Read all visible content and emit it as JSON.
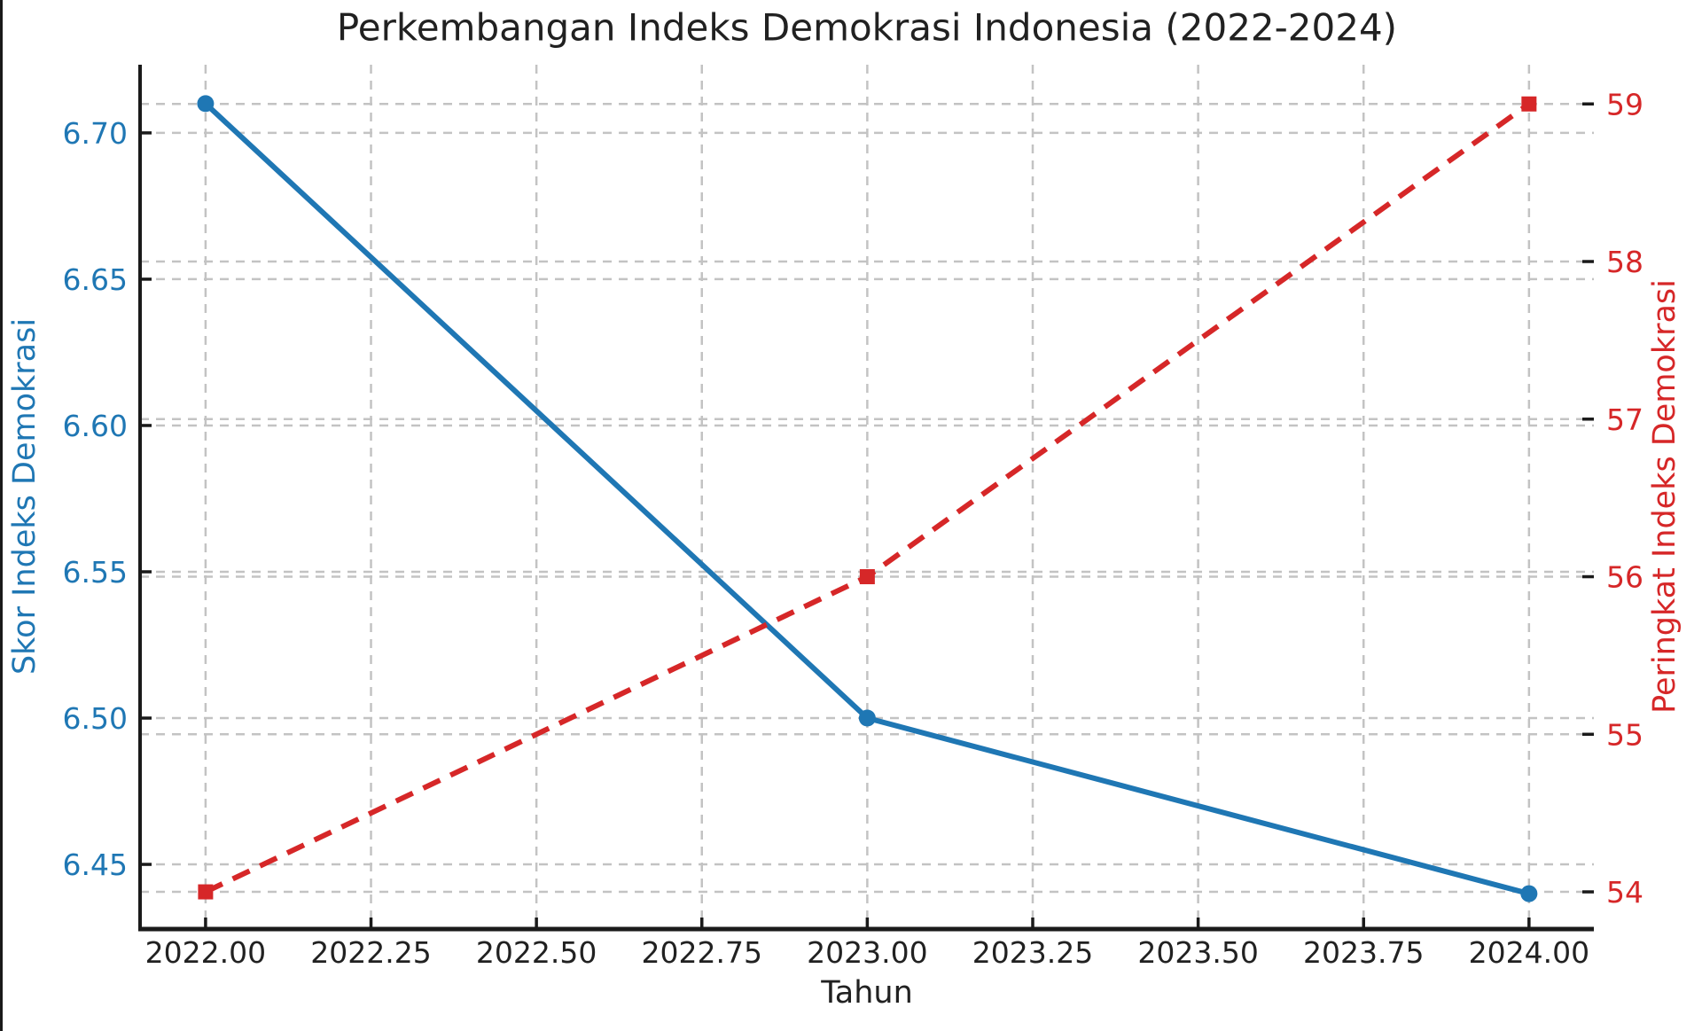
{
  "title": "Perkembangan Indeks Demokrasi Indonesia (2022-2024)",
  "chart_data": {
    "type": "line",
    "title": "Perkembangan Indeks Demokrasi Indonesia (2022-2024)",
    "xlabel": "Tahun",
    "ylabel_left": "Skor Indeks Demokrasi",
    "ylabel_right": "Peringkat Indeks Demokrasi",
    "x": [
      2022,
      2023,
      2024
    ],
    "series": [
      {
        "name": "Skor Indeks Demokrasi",
        "axis": "left",
        "values": [
          6.71,
          6.5,
          6.44
        ],
        "color": "#1f77b4",
        "line_style": "solid",
        "marker": "circle"
      },
      {
        "name": "Peringkat Indeks Demokrasi",
        "axis": "right",
        "values": [
          54,
          56,
          59
        ],
        "color": "#d62728",
        "line_style": "dashed",
        "marker": "square"
      }
    ],
    "xlim": [
      2021.901,
      2024.098
    ],
    "ylim_left": [
      6.4279,
      6.7233
    ],
    "ylim_right": [
      53.764,
      59.249
    ],
    "x_ticks": {
      "values": [
        2022.0,
        2022.25,
        2022.5,
        2022.75,
        2023.0,
        2023.25,
        2023.5,
        2023.75,
        2024.0
      ],
      "labels": [
        "2022.00",
        "2022.25",
        "2022.50",
        "2022.75",
        "2023.00",
        "2023.25",
        "2023.50",
        "2023.75",
        "2024.00"
      ]
    },
    "y_ticks_left": {
      "values": [
        6.45,
        6.5,
        6.55,
        6.6,
        6.65,
        6.7
      ],
      "labels": [
        "6.45",
        "6.50",
        "6.55",
        "6.60",
        "6.65",
        "6.70"
      ]
    },
    "y_ticks_right": {
      "values": [
        54,
        55,
        56,
        57,
        58,
        59
      ],
      "labels": [
        "54",
        "55",
        "56",
        "57",
        "58",
        "59"
      ]
    },
    "grid": true,
    "legend": "none"
  },
  "colors": {
    "series_left": "#1f77b4",
    "series_right": "#d62728",
    "grid": "#c3c3c3",
    "spine": "#1a1a1a",
    "text": "#212121",
    "tick_label_left": "#1f77b4",
    "tick_label_right": "#d62728",
    "background": "#ffffff"
  }
}
